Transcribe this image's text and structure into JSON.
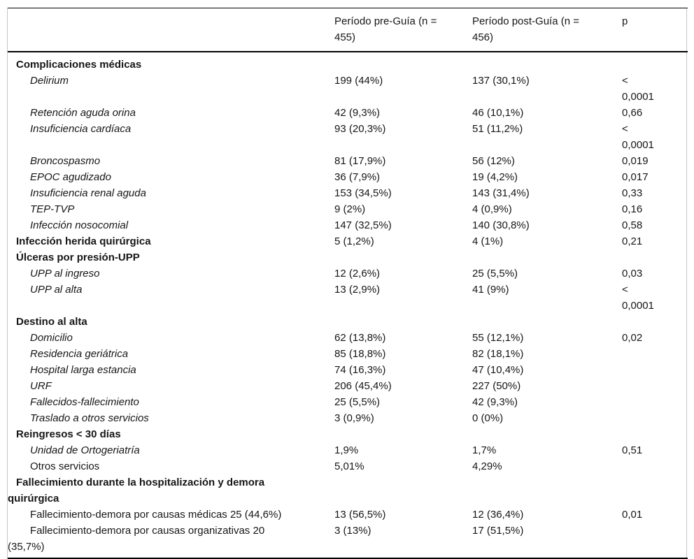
{
  "page": {
    "background": "#ffffff",
    "text_color": "#161616",
    "rule_color": "#000000",
    "side_rule_color": "#c4c4c4"
  },
  "table": {
    "columns": [
      {
        "label": ""
      },
      {
        "label": "Período pre-Guía (n = 455)"
      },
      {
        "label": "Período post-Guía (n = 456)"
      },
      {
        "label": "p"
      }
    ],
    "rows": [
      {
        "style": "section",
        "label": "Complicaciones médicas",
        "pre": "",
        "post": "",
        "p": ""
      },
      {
        "style": "item-italic",
        "label": "Delirium",
        "pre": "199 (44%)",
        "post": "137 (30,1%)",
        "p": "< 0,0001"
      },
      {
        "style": "item-italic",
        "label": "Retención aguda orina",
        "pre": "42 (9,3%)",
        "post": "46 (10,1%)",
        "p": "0,66"
      },
      {
        "style": "item-italic",
        "label": "Insuficiencia cardíaca",
        "pre": "93 (20,3%)",
        "post": "51 (11,2%)",
        "p": "< 0,0001"
      },
      {
        "style": "item-italic",
        "label": "Broncospasmo",
        "pre": "81 (17,9%)",
        "post": "56 (12%)",
        "p": "0,019"
      },
      {
        "style": "item-italic",
        "label": "EPOC agudizado",
        "pre": "36 (7,9%)",
        "post": "19 (4,2%)",
        "p": "0,017"
      },
      {
        "style": "item-italic",
        "label": "Insuficiencia renal aguda",
        "pre": "153 (34,5%)",
        "post": "143 (31,4%)",
        "p": "0,33"
      },
      {
        "style": "item-italic",
        "label": "TEP-TVP",
        "pre": "9 (2%)",
        "post": "4 (0,9%)",
        "p": "0,16"
      },
      {
        "style": "item-italic",
        "label": "Infección nosocomial",
        "pre": "147 (32,5%)",
        "post": "140 (30,8%)",
        "p": "0,58"
      },
      {
        "style": "section",
        "label": "Infección herida quirúrgica",
        "pre": "5 (1,2%)",
        "post": "4 (1%)",
        "p": "0,21"
      },
      {
        "style": "section",
        "label": "Úlceras por presión-UPP",
        "pre": "",
        "post": "",
        "p": ""
      },
      {
        "style": "item-italic",
        "label": "UPP al ingreso",
        "pre": "12 (2,6%)",
        "post": "25 (5,5%)",
        "p": "0,03"
      },
      {
        "style": "item-italic",
        "label": "UPP al alta",
        "pre": "13 (2,9%)",
        "post": "41 (9%)",
        "p": "< 0,0001"
      },
      {
        "style": "section",
        "label": "Destino al alta",
        "pre": "",
        "post": "",
        "p": ""
      },
      {
        "style": "item-italic",
        "label": "Domicilio",
        "pre": "62 (13,8%)",
        "post": "55 (12,1%)",
        "p": "0,02"
      },
      {
        "style": "item-italic",
        "label": "Residencia geriátrica",
        "pre": "85 (18,8%)",
        "post": "82 (18,1%)",
        "p": ""
      },
      {
        "style": "item-italic",
        "label": "Hospital larga estancia",
        "pre": "74 (16,3%)",
        "post": "47 (10,4%)",
        "p": ""
      },
      {
        "style": "item-italic",
        "label": "URF",
        "pre": "206 (45,4%)",
        "post": "227 (50%)",
        "p": ""
      },
      {
        "style": "item-italic",
        "label": "Fallecidos-fallecimiento",
        "pre": "25 (5,5%)",
        "post": "42 (9,3%)",
        "p": ""
      },
      {
        "style": "item-italic",
        "label": "Traslado a otros servicios",
        "pre": "3 (0,9%)",
        "post": "0 (0%)",
        "p": ""
      },
      {
        "style": "section",
        "label": "Reingresos < 30 días",
        "pre": "",
        "post": "",
        "p": ""
      },
      {
        "style": "item-italic",
        "label": "Unidad de Ortogeriatría",
        "pre": "1,9%",
        "post": "1,7%",
        "p": "0,51"
      },
      {
        "style": "item-plain",
        "label": "Otros servicios",
        "pre": "5,01%",
        "post": "4,29%",
        "p": ""
      },
      {
        "style": "section",
        "label": "Fallecimiento durante la hospitalización y demora quirúrgica",
        "pre": "",
        "post": "",
        "p": ""
      },
      {
        "style": "item-plain",
        "label": "Fallecimiento-demora por causas médicas 25 (44,6%)",
        "pre": "13 (56,5%)",
        "post": "12 (36,4%)",
        "p": "0,01"
      },
      {
        "style": "item-plain",
        "label": "Fallecimiento-demora por causas organizativas 20 (35,7%)",
        "pre": "3 (13%)",
        "post": "17 (51,5%)",
        "p": ""
      }
    ]
  }
}
